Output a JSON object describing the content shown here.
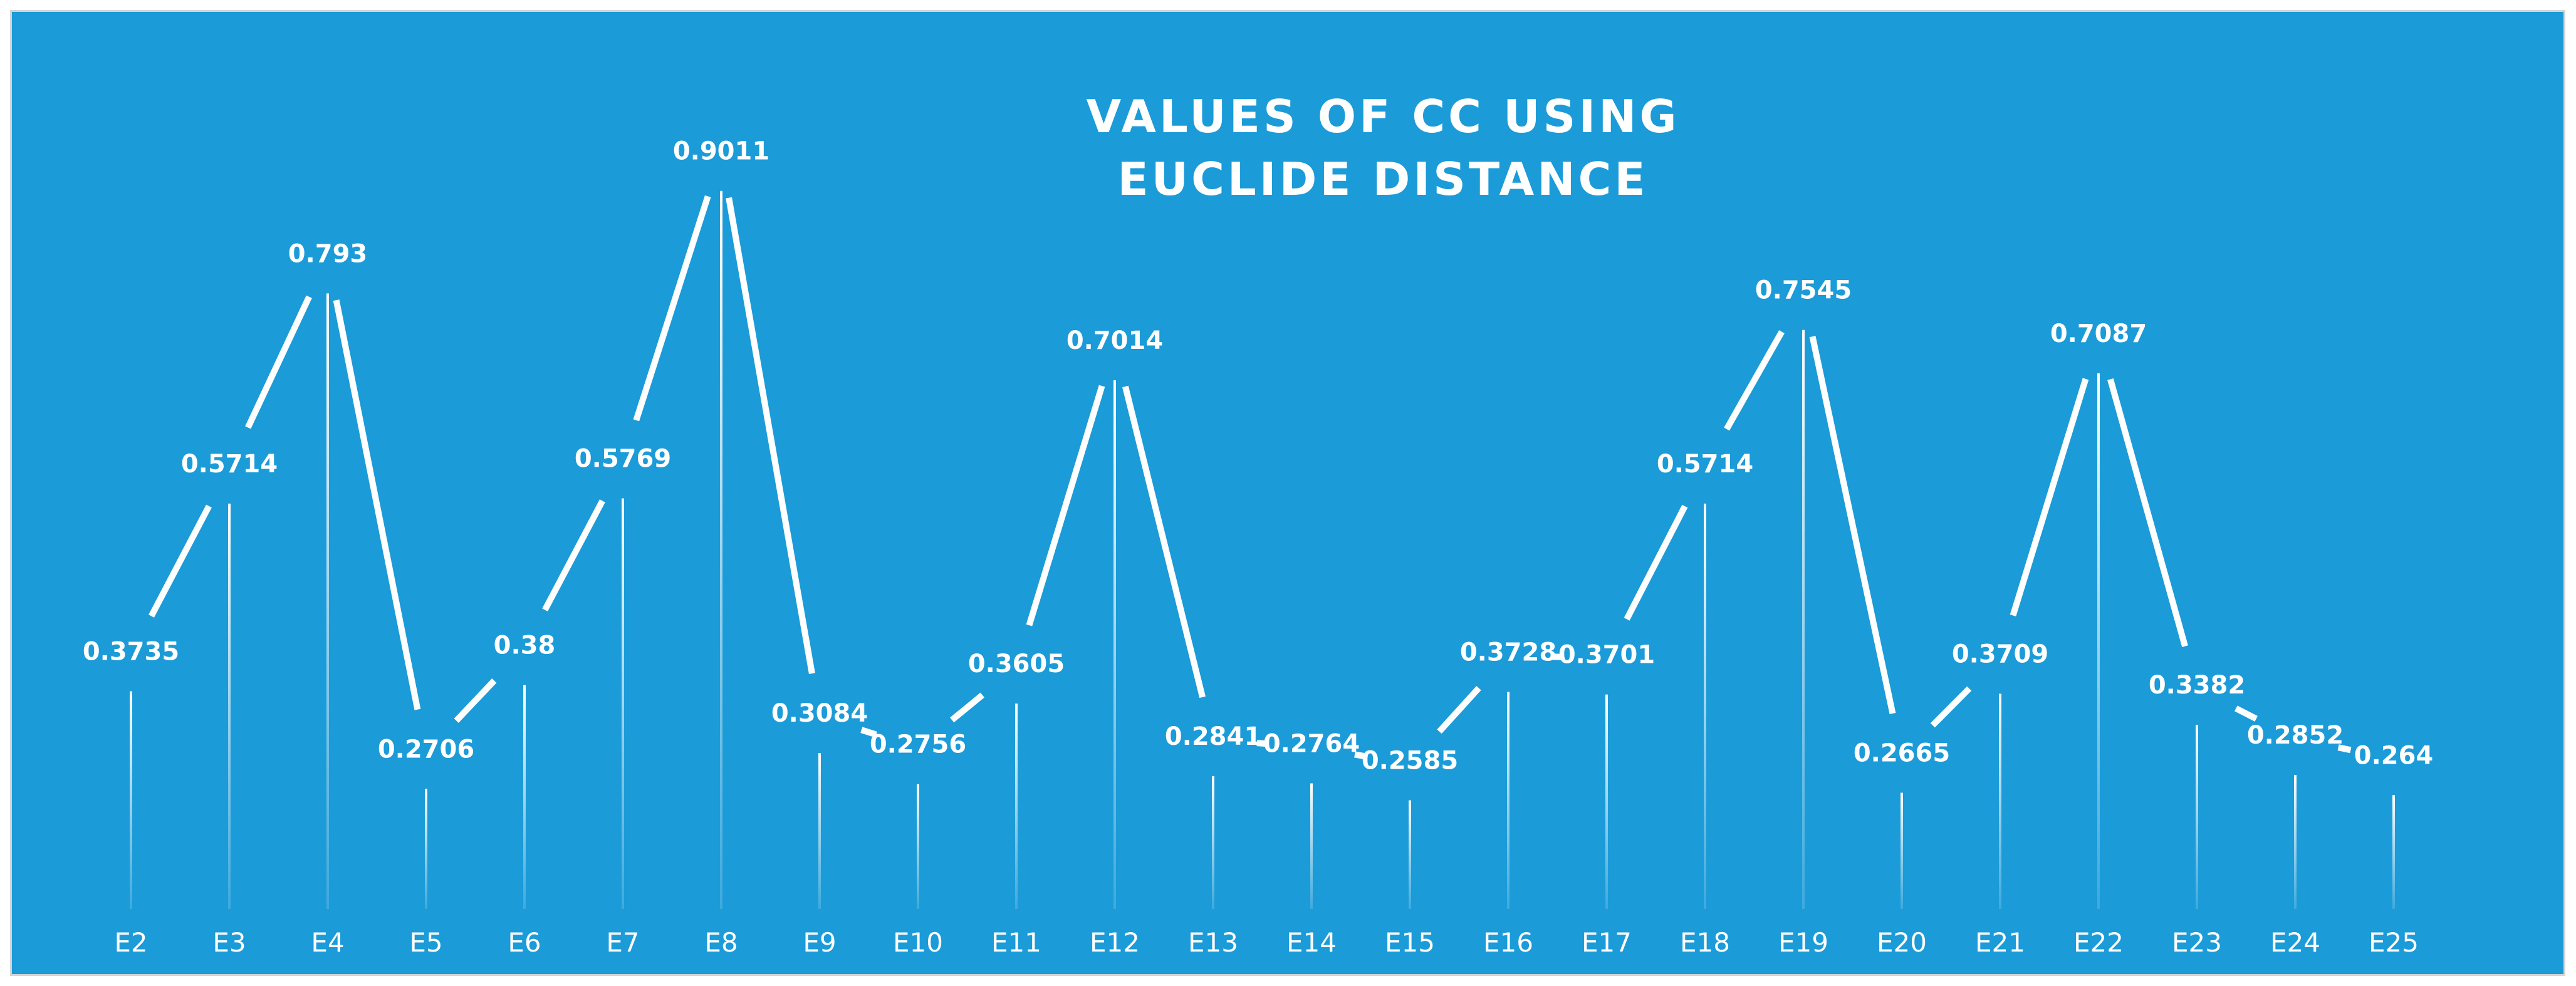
{
  "chart_data": {
    "type": "line",
    "title": "VALUES OF CC USING EUCLIDE DISTANCE",
    "title_lines": [
      "VALUES OF CC USING",
      "EUCLIDE DISTANCE"
    ],
    "categories": [
      "E2",
      "E3",
      "E4",
      "E5",
      "E6",
      "E7",
      "E8",
      "E9",
      "E10",
      "E11",
      "E12",
      "E13",
      "E14",
      "E15",
      "E16",
      "E17",
      "E18",
      "E19",
      "E20",
      "E21",
      "E22",
      "E23",
      "E24",
      "E25"
    ],
    "values": [
      0.3735,
      0.5714,
      0.793,
      0.2706,
      0.38,
      0.5769,
      0.9011,
      0.3084,
      0.2756,
      0.3605,
      0.7014,
      0.2841,
      0.2764,
      0.2585,
      0.3728,
      0.3701,
      0.5714,
      0.7545,
      0.2665,
      0.3709,
      0.7087,
      0.3382,
      0.2852,
      0.264
    ],
    "value_labels": [
      "0.3735",
      "0.5714",
      "0.793",
      "0.2706",
      "0.38",
      "0.5769",
      "0.9011",
      "0.3084",
      "0.2756",
      "0.3605",
      "0.7014",
      "0.2841",
      "0.2764",
      "0.2585",
      "0.3728",
      "0.3701",
      "0.5714",
      "0.7545",
      "0.2665",
      "0.3709",
      "0.7087",
      "0.3382",
      "0.2852",
      "0.264"
    ],
    "xlabel": "",
    "ylabel": "",
    "ylim": [
      0,
      1.0
    ],
    "grid": false,
    "legend": "none",
    "drop_lines": true,
    "colors": {
      "background": "#1b9bd8",
      "line": "#ffffff",
      "text": "#ffffff",
      "frame_border": "#d4d4d4"
    }
  }
}
